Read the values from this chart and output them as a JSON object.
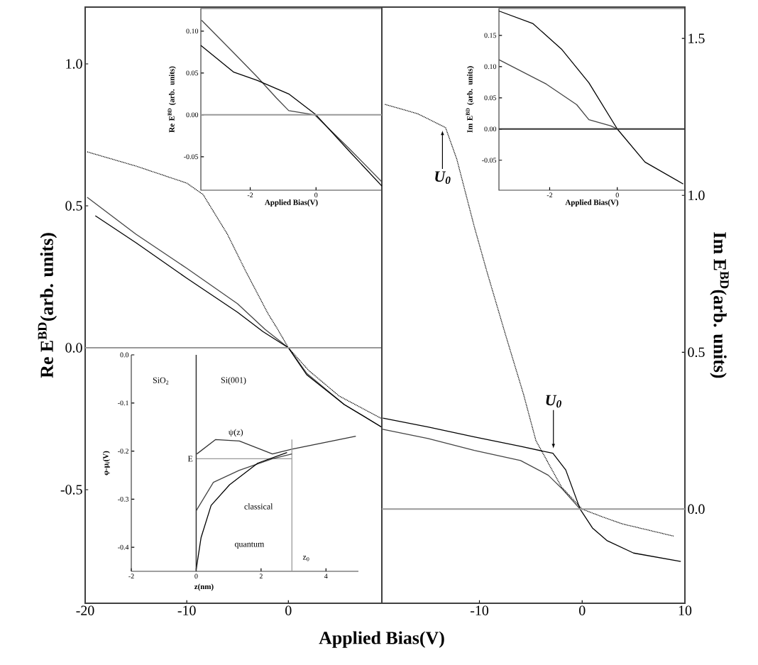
{
  "chart_data": [
    {
      "type": "line",
      "xlabel": "Applied Bias(V)",
      "ylabel": "Re  E$^{BD}$(arb. units)",
      "xlim": [
        -20,
        9.2
      ],
      "xticks": [
        -20,
        -10,
        0
      ],
      "ylim": [
        -0.9,
        1.2
      ],
      "yticks": [
        {
          "value": 1,
          "label": "1.0"
        },
        {
          "value": 0.5,
          "label": "0.5"
        },
        {
          "value": 0,
          "label": "0.0"
        },
        {
          "value": -0.5,
          "label": "-0.5"
        }
      ],
      "ref_lines": [
        {
          "axis": "y",
          "value": 0,
          "color": "#999999"
        }
      ],
      "series": [
        {
          "color": "#444444",
          "line_style": "solid",
          "x": [
            -19.8,
            -15,
            -10,
            -5,
            -2.3,
            0,
            1.8,
            5.5,
            9.2
          ],
          "values": [
            0.53,
            0.4,
            0.28,
            0.155,
            0.065,
            0.0,
            -0.09,
            -0.2,
            -0.28
          ]
        },
        {
          "color": "#000000",
          "line_style": "solid",
          "x": [
            -19,
            -15,
            -10,
            -5,
            -2.5,
            0,
            1.8,
            5.5,
            9.2
          ],
          "values": [
            0.465,
            0.37,
            0.245,
            0.125,
            0.057,
            0,
            -0.095,
            -0.2,
            -0.28
          ]
        },
        {
          "color": "#000000",
          "line_style": "dotted",
          "x": [
            -19.8,
            -15,
            -10,
            -8.4,
            -6,
            -4.2,
            -2,
            -1.05,
            0,
            2,
            5,
            9.2
          ],
          "values": [
            0.69,
            0.64,
            0.58,
            0.54,
            0.4,
            0.27,
            0.12,
            0.065,
            0,
            -0.08,
            -0.17,
            -0.25
          ]
        }
      ]
    },
    {
      "type": "line",
      "ylabel": "Im E$^{BD}$(arb. units)",
      "xlim": [
        -19.5,
        10
      ],
      "xticks": [
        -10,
        0,
        10
      ],
      "ylim": [
        -0.3,
        1.6
      ],
      "yticks": [
        {
          "value": 1.5,
          "label": "1.5"
        },
        {
          "value": 1,
          "label": "1.0"
        },
        {
          "value": 0.5,
          "label": "0.5"
        },
        {
          "value": 0,
          "label": "0.0"
        }
      ],
      "ref_lines": [
        {
          "axis": "y",
          "value": 0,
          "color": "#999999"
        }
      ],
      "annotations": [
        {
          "text": "U$_{0}$",
          "x": -13.6,
          "y": 1.22
        },
        {
          "text": "U$_{0}$",
          "x": -2.8,
          "y": 0.18
        }
      ],
      "series": [
        {
          "color": "#000000",
          "line_style": "solid",
          "x": [
            -19.4,
            -15,
            -10.5,
            -6,
            -2.85,
            -1.6,
            -0.2,
            1,
            2.4,
            5,
            9.6
          ],
          "values": [
            0.29,
            0.262,
            0.23,
            0.2,
            0.178,
            0.125,
            0.0,
            -0.06,
            -0.1,
            -0.14,
            -0.167
          ]
        },
        {
          "color": "#444444",
          "line_style": "solid",
          "x": [
            -19.5,
            -15,
            -10.5,
            -6,
            -3.3,
            -1.9,
            -0.2
          ],
          "values": [
            0.255,
            0.225,
            0.187,
            0.155,
            0.108,
            0.063,
            0.0
          ]
        },
        {
          "color": "#000000",
          "line_style": "dotted",
          "x": [
            -19.2,
            -16,
            -13.3,
            -12.2,
            -10.5,
            -9.3,
            -7.5,
            -5.7,
            -4.5,
            -2,
            0,
            2,
            3.9,
            8.9
          ],
          "values": [
            1.29,
            1.26,
            1.216,
            1.115,
            0.9,
            0.76,
            0.56,
            0.365,
            0.218,
            0.07,
            0,
            -0.025,
            -0.047,
            -0.086
          ]
        }
      ]
    },
    {
      "type": "line",
      "xlabel": "Applied Bias(V)",
      "ylabel": "Re E$^{BD}$ (arb. units)",
      "xlim": [
        -3.5,
        2
      ],
      "xticks": [
        -2,
        0
      ],
      "ylim": [
        -0.09,
        0.127
      ],
      "yticks": [
        {
          "value": 0.1,
          "label": "0.10"
        },
        {
          "value": 0.05,
          "label": "0.05"
        },
        {
          "value": 0,
          "label": "0.00"
        },
        {
          "value": -0.05,
          "label": "-0.05"
        }
      ],
      "ref_lines": [
        {
          "axis": "y",
          "value": 0,
          "color": "#999999"
        }
      ],
      "series": [
        {
          "color": "#444444",
          "line_style": "solid",
          "x": [
            -3.48,
            -2.5,
            -1.78,
            -1.2,
            -0.83,
            -0.04,
            1,
            2.0
          ],
          "values": [
            0.113,
            0.074,
            0.045,
            0.02,
            0.005,
            0,
            -0.04,
            -0.08
          ]
        },
        {
          "color": "#000000",
          "line_style": "solid",
          "x": [
            -3.5,
            -2.5,
            -1.78,
            -0.83,
            0,
            1,
            2
          ],
          "values": [
            0.083,
            0.051,
            0.041,
            0.025,
            0,
            -0.043,
            -0.085
          ]
        }
      ]
    },
    {
      "type": "line",
      "xlabel": "Applied Bias(V)",
      "ylabel": "Im E$^{BD}$ (arb. units)",
      "xlim": [
        -3.5,
        2
      ],
      "xticks": [
        -2,
        0
      ],
      "ylim": [
        -0.098,
        0.193
      ],
      "yticks": [
        {
          "value": 0.15,
          "label": "0.15"
        },
        {
          "value": 0.1,
          "label": "0.10"
        },
        {
          "value": 0.05,
          "label": "0.05"
        },
        {
          "value": 0,
          "label": "0.00"
        },
        {
          "value": -0.05,
          "label": "-0.05"
        }
      ],
      "ref_lines": [
        {
          "axis": "y",
          "value": 0,
          "color": "#333333"
        }
      ],
      "series": [
        {
          "color": "#000000",
          "line_style": "solid",
          "x": [
            -3.5,
            -2.5,
            -1.65,
            -0.84,
            0,
            0.82,
            1.95
          ],
          "values": [
            0.189,
            0.169,
            0.128,
            0.074,
            0,
            -0.053,
            -0.088
          ]
        },
        {
          "color": "#444444",
          "line_style": "solid",
          "x": [
            -3.5,
            -2.1,
            -1.2,
            -0.84,
            -0.19,
            0
          ],
          "values": [
            0.111,
            0.072,
            0.039,
            0.015,
            0.005,
            0
          ]
        }
      ]
    },
    {
      "type": "line",
      "xlabel": "z(nm)",
      "ylabel": "φ-μ$_{i}$(V)",
      "xlim": [
        -2,
        5
      ],
      "xticks": [
        -2,
        0,
        2,
        4
      ],
      "ylim": [
        -0.45,
        0
      ],
      "yticks": [
        {
          "value": 0,
          "label": "0.0"
        },
        {
          "value": -0.1,
          "label": "-0.1"
        },
        {
          "value": -0.2,
          "label": "-0.2"
        },
        {
          "value": -0.3,
          "label": "-0.3"
        },
        {
          "value": -0.4,
          "label": "-0.4"
        }
      ],
      "ref_lines": [
        {
          "axis": "x",
          "value": 0,
          "color": "#333333"
        }
      ],
      "annotations": [
        "SiO$_{2}$",
        "Si(001)",
        "ψ(z)",
        "E",
        "classical",
        "quantum",
        "z$_{0}$"
      ],
      "series": [
        {
          "color": "#333333",
          "line_style": "solid",
          "x": [
            0.02,
            0.6,
            1.33,
            2.35,
            2.95,
            4.92
          ],
          "values": [
            -0.206,
            -0.176,
            -0.179,
            -0.206,
            -0.196,
            -0.169
          ]
        },
        {
          "color": "#999999",
          "line_style": "solid",
          "x": [
            0,
            2.95
          ],
          "values": [
            -0.216,
            -0.216
          ]
        },
        {
          "color": "#999999",
          "line_style": "solid",
          "x": [
            2.95,
            2.95
          ],
          "values": [
            -0.176,
            -0.45
          ]
        },
        {
          "color": "#444444",
          "line_style": "solid",
          "x": [
            0,
            0.53,
            1.33,
            2.35,
            2.95
          ],
          "values": [
            -0.324,
            -0.265,
            -0.24,
            -0.216,
            -0.206
          ]
        },
        {
          "color": "#000000",
          "line_style": "solid",
          "x": [
            0,
            0.15,
            0.46,
            1.03,
            1.9,
            2.8
          ],
          "values": [
            -0.446,
            -0.38,
            -0.313,
            -0.27,
            -0.225,
            -0.203
          ]
        }
      ]
    }
  ]
}
